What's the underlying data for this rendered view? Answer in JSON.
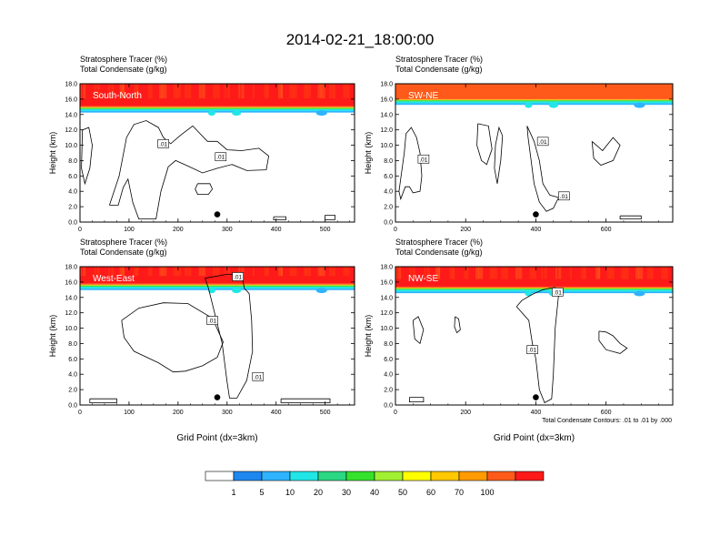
{
  "title": "2014-02-21_18:00:00",
  "footnote": "Total Condensate Contours: .01 to .01 by .000",
  "colorbar": {
    "labels": [
      "1",
      "5",
      "10",
      "20",
      "30",
      "40",
      "50",
      "60",
      "70",
      "100"
    ],
    "colors": [
      "#ffffff",
      "#1e88f0",
      "#2fb3ff",
      "#22e6e6",
      "#2ad782",
      "#35e12c",
      "#a2f032",
      "#ffff00",
      "#ffc800",
      "#ff9a00",
      "#ff5a1a",
      "#ff1a1a"
    ]
  },
  "chart_data": [
    {
      "type": "contour",
      "label": "South-North",
      "title_line1": "Stratosphere Tracer   (%)",
      "title_line2": "Total Condensate   (g/kg)",
      "ylabel": "Height (km)",
      "xlabel": "",
      "xlim": [
        0,
        560
      ],
      "ylim": [
        0,
        18
      ],
      "xticks": [
        0,
        100,
        200,
        300,
        400,
        500
      ],
      "yticks": [
        0.0,
        2.0,
        4.0,
        6.0,
        8.0,
        10.0,
        12.0,
        14.0,
        16.0,
        18.0
      ],
      "contour_labels": [
        {
          "text": ".01",
          "x": 170,
          "y": 10.2
        },
        {
          "text": ".01",
          "x": 287,
          "y": 8.5
        }
      ],
      "marker": {
        "x": 280,
        "y": 1.0
      },
      "tropopause_km": 14.5,
      "stratosphere_tracer_pct": 100
    },
    {
      "type": "contour",
      "label": "SW-NE",
      "title_line1": "Stratosphere Tracer   (%)",
      "title_line2": "Total Condensate   (g/kg)",
      "ylabel": "Height (km)",
      "xlabel": "",
      "xlim": [
        0,
        790
      ],
      "ylim": [
        0,
        18
      ],
      "xticks": [
        0,
        200,
        400,
        600
      ],
      "yticks": [
        0.0,
        2.0,
        4.0,
        6.0,
        8.0,
        10.0,
        12.0,
        14.0,
        16.0,
        18.0
      ],
      "contour_labels": [
        {
          "text": ".01",
          "x": 420,
          "y": 10.5
        },
        {
          "text": ".01",
          "x": 80,
          "y": 8.2
        },
        {
          "text": ".01",
          "x": 480,
          "y": 3.4
        }
      ],
      "marker": {
        "x": 400,
        "y": 1.0
      },
      "tropopause_km": 15.3,
      "stratosphere_tracer_pct": 70
    },
    {
      "type": "contour",
      "label": "West-East",
      "title_line1": "Stratosphere Tracer   (%)",
      "title_line2": "Total Condensate   (g/kg)",
      "ylabel": "Height (km)",
      "xlabel": "Grid Point (dx=3km)",
      "xlim": [
        0,
        560
      ],
      "ylim": [
        0,
        18
      ],
      "xticks": [
        0,
        100,
        200,
        300,
        400,
        500
      ],
      "yticks": [
        0.0,
        2.0,
        4.0,
        6.0,
        8.0,
        10.0,
        12.0,
        14.0,
        16.0,
        18.0
      ],
      "contour_labels": [
        {
          "text": ".01",
          "x": 270,
          "y": 11.0
        },
        {
          "text": ".01",
          "x": 322,
          "y": 16.7
        },
        {
          "text": ".01",
          "x": 363,
          "y": 3.7
        }
      ],
      "marker": {
        "x": 280,
        "y": 1.0
      },
      "tropopause_km": 15.2,
      "stratosphere_tracer_pct": 100
    },
    {
      "type": "contour",
      "label": "NW-SE",
      "title_line1": "Stratosphere Tracer   (%)",
      "title_line2": "Total Condensate   (g/kg)",
      "ylabel": "Height (km)",
      "xlabel": "Grid Point (dx=3km)",
      "xlim": [
        0,
        790
      ],
      "ylim": [
        0,
        18
      ],
      "xticks": [
        0,
        200,
        400,
        600
      ],
      "yticks": [
        0.0,
        2.0,
        4.0,
        6.0,
        8.0,
        10.0,
        12.0,
        14.0,
        16.0,
        18.0
      ],
      "contour_labels": [
        {
          "text": ".01",
          "x": 462,
          "y": 14.7
        },
        {
          "text": ".01",
          "x": 390,
          "y": 7.2
        }
      ],
      "marker": {
        "x": 400,
        "y": 1.0
      },
      "tropopause_km": 14.8,
      "stratosphere_tracer_pct": 100
    }
  ]
}
